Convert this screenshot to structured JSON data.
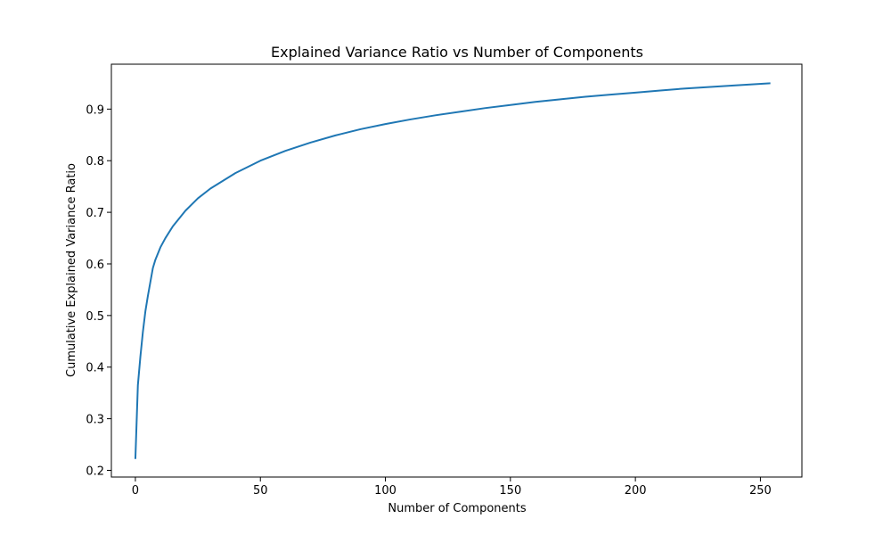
{
  "chart_data": {
    "type": "line",
    "title": "Explained Variance Ratio vs Number of Components",
    "xlabel": "Number of Components",
    "ylabel": "Cumulative Explained Variance Ratio",
    "xlim": [
      -9.6,
      266.6
    ],
    "ylim": [
      0.187,
      0.987
    ],
    "xticks": [
      0,
      50,
      100,
      150,
      200,
      250
    ],
    "xtick_labels": [
      "0",
      "50",
      "100",
      "150",
      "200",
      "250"
    ],
    "yticks": [
      0.2,
      0.3,
      0.4,
      0.5,
      0.6,
      0.7,
      0.8,
      0.9
    ],
    "ytick_labels": [
      "0.2",
      "0.3",
      "0.4",
      "0.5",
      "0.6",
      "0.7",
      "0.8",
      "0.9"
    ],
    "grid": false,
    "legend": "none",
    "series": [
      {
        "color": "#1f77b4",
        "x": [
          0,
          1,
          2,
          3,
          4,
          5,
          6,
          7,
          8,
          10,
          12,
          15,
          20,
          25,
          30,
          40,
          50,
          60,
          70,
          80,
          90,
          100,
          110,
          120,
          130,
          140,
          150,
          160,
          170,
          180,
          190,
          200,
          210,
          220,
          230,
          240,
          254
        ],
        "y": [
          0.222,
          0.365,
          0.42,
          0.468,
          0.508,
          0.538,
          0.565,
          0.592,
          0.608,
          0.632,
          0.65,
          0.673,
          0.703,
          0.727,
          0.746,
          0.776,
          0.8,
          0.819,
          0.835,
          0.849,
          0.861,
          0.871,
          0.88,
          0.888,
          0.895,
          0.902,
          0.908,
          0.914,
          0.919,
          0.924,
          0.928,
          0.932,
          0.936,
          0.94,
          0.943,
          0.946,
          0.95
        ]
      }
    ]
  }
}
